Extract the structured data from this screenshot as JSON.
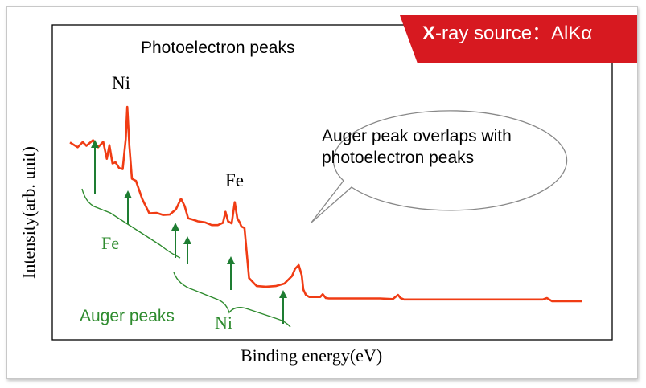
{
  "badge": {
    "bold_letter": "X",
    "text": "-ray source：AlKα",
    "color": "#d71920"
  },
  "colors": {
    "spectrum": "#f03c14",
    "arrow": "#1e7d32",
    "green_text": "#2e8b2e",
    "axis": "#000000"
  },
  "chart_data": {
    "type": "line",
    "xlabel": "Binding energy(eV)",
    "ylabel": "Intensity(arb. unit)",
    "xlim": [
      0,
      100
    ],
    "ylim": [
      0,
      100
    ],
    "x_reversed": false,
    "grid": false,
    "annotations": {
      "photoelectron_title": "Photoelectron peaks",
      "ni_peak_label": "Ni",
      "fe_peak_label": "Fe",
      "auger_fe_label": "Fe",
      "auger_ni_label": "Ni",
      "auger_peaks_label": "Auger peaks",
      "callout_line1": "Auger peak overlaps with",
      "callout_line2": "photoelectron peaks"
    },
    "series": [
      {
        "x": [
          0,
          1.5,
          2.5,
          3.2,
          4.5,
          5.5,
          6.5,
          7.2,
          7.7,
          8.3,
          8.9,
          9.6,
          10.3,
          10.9,
          11.2,
          11.6,
          12.1,
          12.9,
          14.1,
          15.5,
          16.9,
          18.2,
          19.5,
          20.7,
          21.7,
          22.4,
          23.1,
          23.9,
          25.0,
          26.4,
          27.7,
          28.9,
          29.9,
          30.4,
          30.9,
          31.6,
          32.2,
          32.7,
          33.2,
          33.5,
          34.1,
          35.0,
          36.5,
          38.3,
          40.2,
          41.9,
          43.4,
          44.0,
          44.7,
          45.3,
          45.6,
          46.1,
          46.8,
          47.7,
          48.9,
          49.4,
          50.0,
          50.6,
          51.6,
          53.5,
          56.8,
          60.6,
          63.1,
          64.1,
          64.6,
          65.3,
          67.3,
          76.4,
          86.2,
          92.4,
          93.2,
          94.2,
          100
        ],
        "y": [
          78.8,
          76.5,
          79.0,
          77.2,
          79.9,
          76.5,
          79.1,
          71.0,
          77.5,
          68.8,
          69.3,
          66.6,
          66.1,
          80.4,
          95.8,
          77.2,
          61.5,
          60.5,
          51.9,
          45.0,
          45.2,
          44.2,
          44.4,
          46.9,
          52.0,
          48.5,
          42.6,
          42.1,
          41.2,
          40.7,
          39.4,
          39.4,
          40.5,
          45.7,
          41.2,
          40.2,
          50.3,
          42.6,
          40.5,
          38.7,
          38.0,
          14.1,
          10.3,
          10.0,
          10.3,
          11.5,
          15.1,
          18.6,
          20.3,
          15.4,
          8.7,
          6.1,
          5.1,
          5.1,
          5.1,
          6.4,
          4.6,
          4.4,
          4.4,
          4.4,
          4.4,
          4.4,
          4.1,
          6.1,
          4.6,
          3.9,
          3.9,
          3.9,
          3.9,
          3.9,
          4.6,
          3.1,
          3.1
        ]
      }
    ]
  }
}
